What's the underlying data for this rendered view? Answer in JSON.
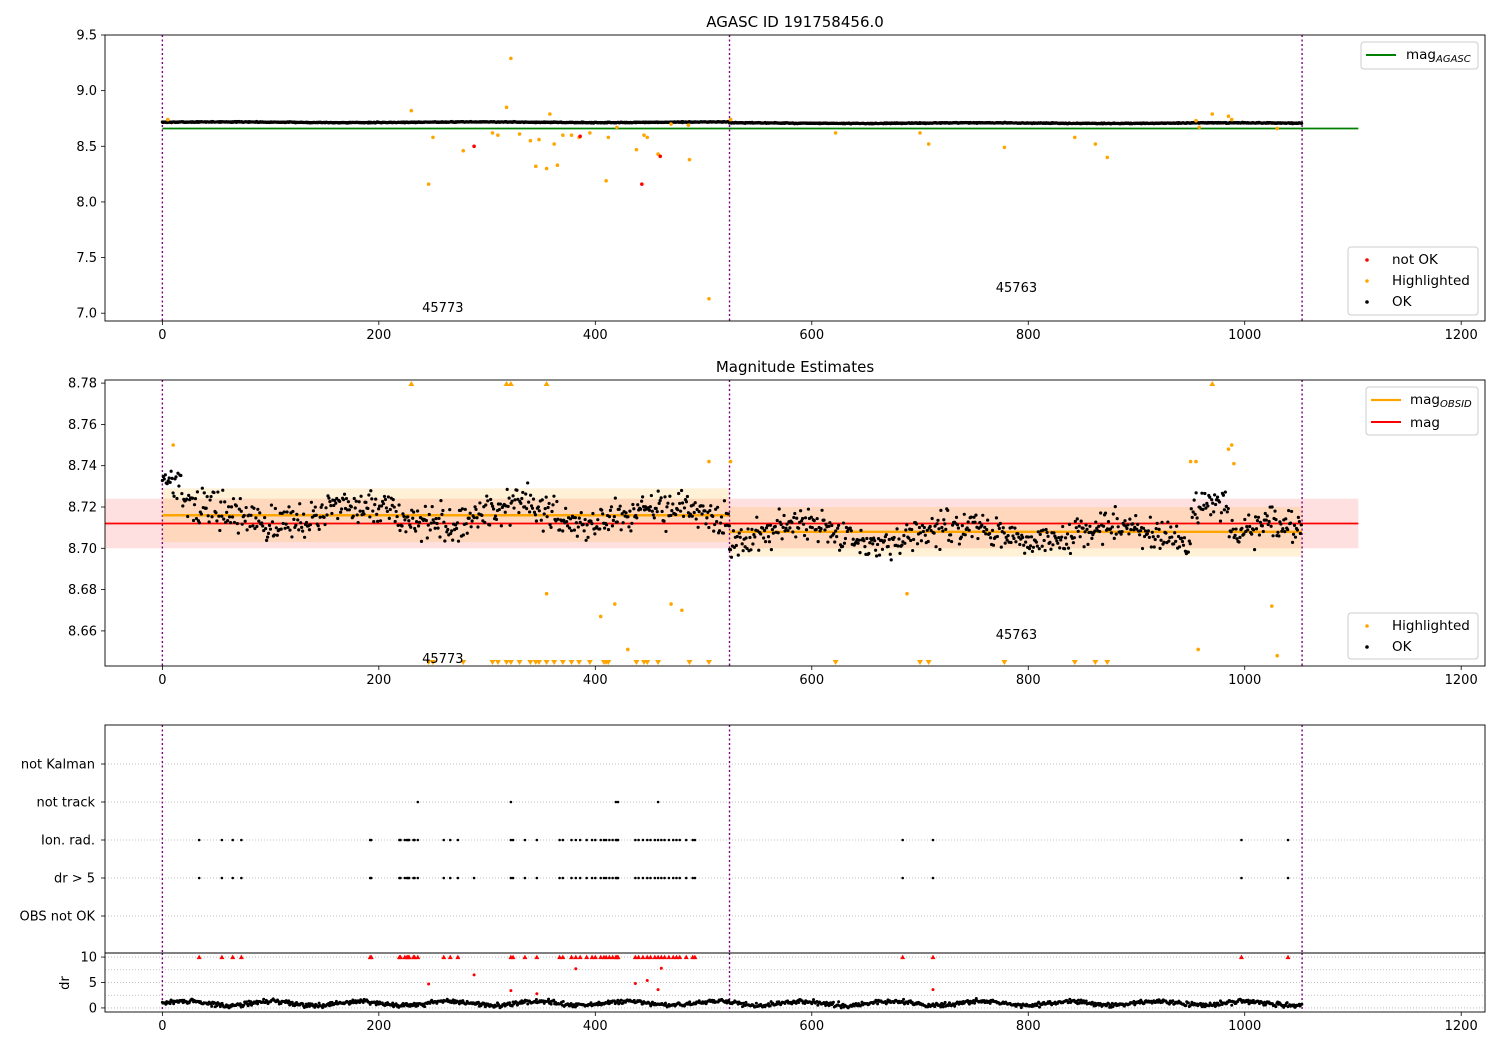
{
  "chart_data": [
    {
      "id": "top",
      "type": "scatter",
      "title": "AGASC ID 191758456.0",
      "xlim": [
        -53,
        1222
      ],
      "ylim": [
        6.93,
        9.5
      ],
      "xticks": [
        0,
        200,
        400,
        600,
        800,
        1000,
        1200
      ],
      "yticks": [
        7.0,
        7.5,
        8.0,
        8.5,
        9.0,
        9.5
      ],
      "ytick_labels": [
        "7.0",
        "7.5",
        "8.0",
        "8.5",
        "9.0",
        "9.5"
      ],
      "obsid_boundaries": [
        0,
        524,
        1053
      ],
      "obsid_labels": [
        {
          "text": "45773",
          "x": 240,
          "y": 7.0
        },
        {
          "text": "45763",
          "x": 770,
          "y": 7.18
        }
      ],
      "reference_line": {
        "name": "mag",
        "subscript": "AGASC",
        "value": 8.66,
        "x_range": [
          0,
          1105
        ],
        "color": "#008000"
      },
      "ok_series": {
        "name": "OK",
        "color": "#000000",
        "segments": [
          {
            "x_start": 0,
            "x_end": 524,
            "mean": 8.716,
            "noise": 0.006
          },
          {
            "x_start": 524,
            "x_end": 1053,
            "mean": 8.708,
            "noise": 0.006
          }
        ]
      },
      "highlighted": {
        "name": "Highlighted",
        "color": "#ffa500",
        "points": [
          [
            5,
            8.74
          ],
          [
            230,
            8.82
          ],
          [
            246,
            8.16
          ],
          [
            250,
            8.58
          ],
          [
            278,
            8.46
          ],
          [
            305,
            8.62
          ],
          [
            310,
            8.6
          ],
          [
            318,
            8.85
          ],
          [
            322,
            9.29
          ],
          [
            330,
            8.61
          ],
          [
            340,
            8.55
          ],
          [
            345,
            8.32
          ],
          [
            348,
            8.56
          ],
          [
            355,
            8.3
          ],
          [
            358,
            8.79
          ],
          [
            362,
            8.52
          ],
          [
            365,
            8.33
          ],
          [
            370,
            8.6
          ],
          [
            378,
            8.6
          ],
          [
            385,
            8.58
          ],
          [
            395,
            8.62
          ],
          [
            410,
            8.19
          ],
          [
            412,
            8.58
          ],
          [
            420,
            8.67
          ],
          [
            438,
            8.47
          ],
          [
            445,
            8.6
          ],
          [
            448,
            8.58
          ],
          [
            458,
            8.43
          ],
          [
            470,
            8.7
          ],
          [
            486,
            8.69
          ],
          [
            487,
            8.38
          ],
          [
            505,
            7.13
          ],
          [
            525,
            8.74
          ],
          [
            622,
            8.62
          ],
          [
            700,
            8.62
          ],
          [
            708,
            8.52
          ],
          [
            778,
            8.49
          ],
          [
            843,
            8.58
          ],
          [
            862,
            8.52
          ],
          [
            873,
            8.4
          ],
          [
            955,
            8.73
          ],
          [
            958,
            8.67
          ],
          [
            970,
            8.79
          ],
          [
            985,
            8.77
          ],
          [
            988,
            8.74
          ],
          [
            1030,
            8.66
          ]
        ]
      },
      "not_ok": {
        "name": "not OK",
        "color": "#ff0000",
        "points": [
          [
            288,
            8.5
          ],
          [
            386,
            8.59
          ],
          [
            443,
            8.16
          ],
          [
            460,
            8.41
          ]
        ]
      },
      "legend_upper": "upper right",
      "legend_lower": "lower right"
    },
    {
      "id": "mid",
      "type": "scatter",
      "title": "Magnitude Estimates",
      "xlim": [
        -53,
        1222
      ],
      "ylim": [
        8.643,
        8.7815
      ],
      "xticks": [
        0,
        200,
        400,
        600,
        800,
        1000,
        1200
      ],
      "yticks": [
        8.66,
        8.68,
        8.7,
        8.72,
        8.74,
        8.76,
        8.78
      ],
      "ytick_labels": [
        "8.66",
        "8.68",
        "8.70",
        "8.72",
        "8.74",
        "8.76",
        "8.78"
      ],
      "obsid_boundaries": [
        0,
        524,
        1053
      ],
      "obsid_labels": [
        {
          "text": "45773",
          "x": 240,
          "y": 8.6465
        },
        {
          "text": "45763",
          "x": 770,
          "y": 8.658
        }
      ],
      "mag_line": {
        "name": "mag",
        "value": 8.712,
        "band": [
          8.7,
          8.724
        ],
        "x_range": [
          -53,
          1105
        ],
        "color": "#ff0000"
      },
      "obsid_mags": {
        "name": "mag",
        "subscript": "OBSID",
        "color": "#ffa500",
        "segments": [
          {
            "x_start": 0,
            "x_end": 524,
            "value": 8.716,
            "band1": [
              8.703,
              8.729
            ],
            "band2": [
              8.703,
              8.729
            ]
          },
          {
            "x_start": 524,
            "x_end": 1053,
            "value": 8.708,
            "band1": [
              8.696,
              8.72
            ],
            "band2": [
              8.696,
              8.72
            ]
          }
        ]
      },
      "ok_series": {
        "name": "OK",
        "color": "#000000",
        "segments": [
          {
            "x_start": 0,
            "x_end": 524,
            "mean": 8.716,
            "noise": 0.01
          },
          {
            "x_start": 524,
            "x_end": 1053,
            "mean": 8.707,
            "noise": 0.009
          }
        ]
      },
      "highlighted": {
        "name": "Highlighted",
        "color": "#ffa500",
        "points": [
          [
            10,
            8.75
          ],
          [
            355,
            8.678
          ],
          [
            405,
            8.667
          ],
          [
            418,
            8.673
          ],
          [
            430,
            8.651
          ],
          [
            470,
            8.673
          ],
          [
            480,
            8.67
          ],
          [
            505,
            8.742
          ],
          [
            525,
            8.742
          ],
          [
            688,
            8.678
          ],
          [
            950,
            8.742
          ],
          [
            955,
            8.742
          ],
          [
            957,
            8.651
          ],
          [
            985,
            8.748
          ],
          [
            988,
            8.75
          ],
          [
            990,
            8.741
          ],
          [
            1025,
            8.672
          ],
          [
            1030,
            8.648
          ]
        ]
      },
      "off_scale_high_x": [
        230,
        318,
        322,
        355,
        970
      ],
      "off_scale_low_x": [
        246,
        250,
        278,
        305,
        310,
        318,
        322,
        330,
        340,
        345,
        348,
        355,
        362,
        370,
        378,
        385,
        395,
        408,
        410,
        412,
        438,
        445,
        448,
        458,
        487,
        505,
        622,
        700,
        708,
        778,
        843,
        862,
        873
      ],
      "legend_upper": "upper right",
      "legend_lower": "lower right"
    },
    {
      "id": "flags",
      "type": "scatter",
      "title": "",
      "xlim": [
        -53,
        1222
      ],
      "categories": [
        "not Kalman",
        "not track",
        "Ion. rad.",
        "dr > 5",
        "OBS not OK"
      ],
      "obsid_boundaries": [
        0,
        524,
        1053
      ],
      "color": "#000000",
      "flag_points": {
        "not track": [
          236,
          322,
          419,
          421,
          458
        ],
        "Ion. rad.": [
          34,
          55,
          65,
          73,
          192,
          193,
          219,
          220,
          224,
          226,
          227,
          228,
          232,
          233,
          236,
          260,
          266,
          273,
          322,
          324,
          335,
          346,
          367,
          370,
          378,
          382,
          386,
          392,
          397,
          400,
          405,
          408,
          410,
          413,
          416,
          419,
          420,
          421,
          437,
          440,
          444,
          448,
          451,
          455,
          458,
          461,
          464,
          468,
          472,
          475,
          478,
          484,
          490,
          492,
          684,
          712,
          997,
          1040
        ],
        "dr > 5": [
          34,
          55,
          65,
          73,
          192,
          193,
          219,
          220,
          224,
          226,
          227,
          228,
          232,
          233,
          236,
          260,
          266,
          273,
          288,
          322,
          324,
          335,
          346,
          367,
          370,
          378,
          382,
          386,
          392,
          397,
          400,
          405,
          408,
          410,
          413,
          416,
          419,
          420,
          421,
          437,
          440,
          444,
          448,
          451,
          455,
          458,
          461,
          464,
          468,
          472,
          475,
          478,
          484,
          490,
          492,
          684,
          712,
          997,
          1040
        ]
      }
    },
    {
      "id": "dr",
      "type": "scatter",
      "ylabel": "dr",
      "xlim": [
        -53,
        1222
      ],
      "ylim": [
        -0.8,
        10.8
      ],
      "xticks": [
        0,
        200,
        400,
        600,
        800,
        1000,
        1200
      ],
      "yticks": [
        0,
        5,
        10
      ],
      "ytick_labels": [
        "0",
        "5",
        "10"
      ],
      "obsid_boundaries": [
        0,
        524,
        1053
      ],
      "ok_series": {
        "color": "#000000",
        "mean": 0.9,
        "noise": 0.45,
        "x_start": 0,
        "x_end": 1053
      },
      "clipped_high_x": [
        34,
        55,
        65,
        73,
        192,
        193,
        219,
        220,
        224,
        226,
        227,
        228,
        232,
        233,
        236,
        260,
        266,
        273,
        322,
        324,
        335,
        346,
        367,
        370,
        378,
        382,
        386,
        392,
        397,
        400,
        405,
        408,
        410,
        413,
        416,
        419,
        420,
        421,
        437,
        440,
        444,
        448,
        451,
        455,
        458,
        461,
        464,
        468,
        472,
        475,
        478,
        484,
        490,
        492,
        684,
        712,
        997,
        1040
      ],
      "red_points": [
        [
          246,
          4.7
        ],
        [
          288,
          6.5
        ],
        [
          322,
          3.4
        ],
        [
          346,
          2.8
        ],
        [
          382,
          7.7
        ],
        [
          437,
          4.8
        ],
        [
          448,
          5.4
        ],
        [
          458,
          3.6
        ],
        [
          461,
          7.8
        ],
        [
          712,
          3.6
        ]
      ],
      "color_high": "#ff0000"
    }
  ]
}
